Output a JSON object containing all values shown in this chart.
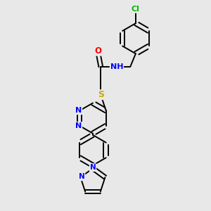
{
  "bg_color": "#e8e8e8",
  "bond_color": "#000000",
  "bond_width": 1.4,
  "atom_colors": {
    "N": "#0000ff",
    "O": "#ff0000",
    "S": "#ccaa00",
    "Cl": "#00bb00",
    "C": "#000000",
    "H": "#444444"
  },
  "font_size_atom": 8.5,
  "font_size_small": 7.5
}
